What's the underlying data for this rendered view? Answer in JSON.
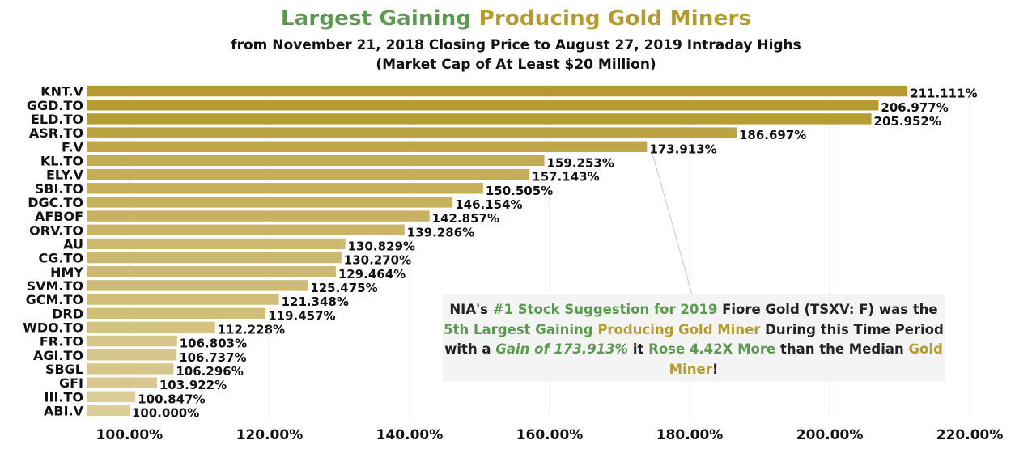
{
  "title": {
    "part1": "Largest Gaining",
    "part2": "Producing Gold Miners",
    "color1": "#5a9a4e",
    "color2": "#b59b2e"
  },
  "subtitle1": "from November 21, 2018 Closing Price to August 27, 2019 Intraday Highs",
  "subtitle2": "(Market Cap of At Least $20 Million)",
  "callout": {
    "s1": "NIA's ",
    "s2": "#1 Stock Suggestion for 2019",
    "s3": " Fiore Gold (TSXV: F) was the ",
    "s4": "5th Largest Gaining ",
    "s5": "Producing Gold Miner",
    "s6": " During this Time Period with a ",
    "s7": "Gain of 173.913%",
    "s8": " it ",
    "s9": "Rose 4.42X More",
    "s10": " than the Median ",
    "s11": "Gold Miner",
    "s12": "!"
  },
  "chart_data": {
    "type": "bar",
    "orientation": "horizontal",
    "categories": [
      "KNT.V",
      "GGD.TO",
      "ELD.TO",
      "ASR.TO",
      "F.V",
      "KL.TO",
      "ELY.V",
      "SBI.TO",
      "DGC.TO",
      "AFBOF",
      "ORV.TO",
      "AU",
      "CG.TO",
      "HMY",
      "SVM.TO",
      "GCM.TO",
      "DRD",
      "WDO.TO",
      "FR.TO",
      "AGI.TO",
      "SBGL",
      "GFI",
      "III.TO",
      "ABI.V"
    ],
    "values": [
      211.111,
      206.977,
      205.952,
      186.697,
      173.913,
      159.253,
      157.143,
      150.505,
      146.154,
      142.857,
      139.286,
      130.829,
      130.27,
      129.464,
      125.475,
      121.348,
      119.457,
      112.228,
      106.803,
      106.737,
      106.296,
      103.922,
      100.847,
      100.0
    ],
    "labels": [
      "211.111%",
      "206.977%",
      "205.952%",
      "186.697%",
      "173.913%",
      "159.253%",
      "157.143%",
      "150.505%",
      "146.154%",
      "142.857%",
      "139.286%",
      "130.829%",
      "130.270%",
      "129.464%",
      "125.475%",
      "121.348%",
      "119.457%",
      "112.228%",
      "106.803%",
      "106.737%",
      "106.296%",
      "103.922%",
      "100.847%",
      "100.000%"
    ],
    "xticks": [
      100,
      120,
      140,
      160,
      180,
      200,
      220
    ],
    "xtick_labels": [
      "100.00%",
      "120.00%",
      "140.00%",
      "160.00%",
      "180.00%",
      "200.00%",
      "220.00%"
    ],
    "xlim": [
      94,
      226
    ],
    "grid": true,
    "color_high": "#b59b2e",
    "color_low": "#dccd99"
  }
}
